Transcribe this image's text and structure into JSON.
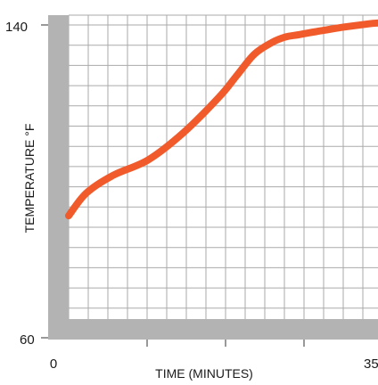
{
  "chart_data": {
    "type": "line",
    "xlabel": "TIME  (MINUTES)",
    "ylabel": "TEMPERATURE  °F",
    "xlim": [
      0,
      35
    ],
    "ylim": [
      60,
      140
    ],
    "x_tick_labels": [
      "0",
      "35"
    ],
    "y_tick_labels": [
      "140",
      "60"
    ],
    "grid": true,
    "colors": {
      "line": "#f15a2b",
      "axis_bar": "#b3b3b3",
      "grid": "#aaaaaa"
    },
    "series": [
      {
        "values_x": [
          0,
          2,
          5,
          9,
          13,
          17,
          19,
          21,
          23,
          24.5,
          26,
          28,
          31,
          34,
          35
        ],
        "values_y": [
          91.2,
          97,
          101.5,
          105.5,
          112.5,
          121.5,
          127,
          132.5,
          135.5,
          136.9,
          137.5,
          138.3,
          139.4,
          140.3,
          140.5
        ]
      }
    ]
  }
}
